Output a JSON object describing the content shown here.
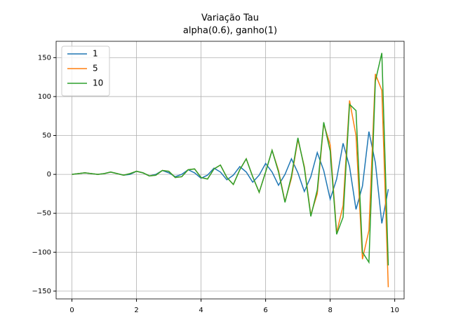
{
  "chart_data": {
    "type": "line",
    "title": "Variação Tau",
    "subtitle": "alpha(0.6), ganho(1)",
    "x": [
      0,
      0.2,
      0.4,
      0.6,
      0.8,
      1.0,
      1.2,
      1.4,
      1.6,
      1.8,
      2.0,
      2.2,
      2.4,
      2.6,
      2.8,
      3.0,
      3.2,
      3.4,
      3.6,
      3.8,
      4.0,
      4.2,
      4.4,
      4.6,
      4.8,
      5.0,
      5.2,
      5.4,
      5.6,
      5.8,
      6.0,
      6.2,
      6.4,
      6.6,
      6.8,
      7.0,
      7.2,
      7.4,
      7.6,
      7.8,
      8.0,
      8.2,
      8.4,
      8.6,
      8.8,
      9.0,
      9.2,
      9.4,
      9.6,
      9.8
    ],
    "series": [
      {
        "name": "1",
        "color": "#1f77b4",
        "values": [
          0,
          1,
          2,
          1,
          0,
          1,
          3,
          1,
          -1,
          0,
          4,
          2,
          -2,
          0,
          5,
          2,
          -3,
          0,
          6,
          2,
          -5,
          -1,
          8,
          3,
          -7,
          -1,
          10,
          3,
          -10,
          -1,
          14,
          3,
          -14,
          0,
          20,
          2,
          -22,
          -3,
          28,
          5,
          -32,
          -6,
          40,
          10,
          -45,
          -15,
          55,
          15,
          -63,
          -19
        ]
      },
      {
        "name": "5",
        "color": "#ff7f0e",
        "values": [
          0,
          1,
          2,
          1,
          0,
          1,
          3,
          1,
          -1,
          1,
          4,
          2,
          -2,
          -1,
          5,
          4,
          -4,
          -3,
          6,
          7,
          -4,
          -6,
          7,
          12,
          -4,
          -13,
          6,
          20,
          -3,
          -23,
          3,
          31,
          5,
          -35,
          -5,
          45,
          10,
          -52,
          -25,
          65,
          38,
          -75,
          -40,
          95,
          50,
          -109,
          -72,
          129,
          108,
          -145
        ]
      },
      {
        "name": "10",
        "color": "#2ca02c",
        "values": [
          0,
          1,
          2,
          1,
          0,
          1,
          3,
          1,
          -1,
          1,
          4,
          2,
          -2,
          -1,
          5,
          4,
          -4,
          -3,
          6,
          7,
          -4,
          -6,
          7,
          12,
          -4,
          -13,
          6,
          20,
          -3,
          -23,
          3,
          31,
          3,
          -36,
          -2,
          47,
          8,
          -54,
          -20,
          67,
          30,
          -77,
          -55,
          90,
          82,
          -100,
          -113,
          120,
          156,
          -117
        ]
      }
    ],
    "xlim": [
      -0.49,
      10.29
    ],
    "ylim": [
      -160,
      171
    ],
    "xticks": [
      0,
      2,
      4,
      6,
      8,
      10
    ],
    "yticks": [
      {
        "value": -150,
        "label": "−150"
      },
      {
        "value": -100,
        "label": "−100"
      },
      {
        "value": -50,
        "label": "−50"
      },
      0,
      50,
      100,
      150
    ],
    "grid": true,
    "legend": "upper left"
  }
}
